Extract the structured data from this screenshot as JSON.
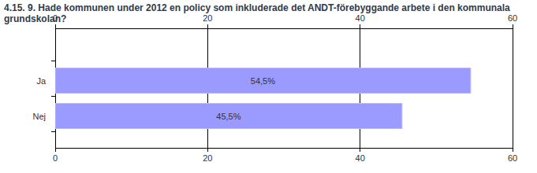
{
  "chart_data": {
    "type": "bar",
    "title": "4.15. 9. Hade kommunen under 2012 en policy som inkluderade det ANDT-förebyggande arbete i den kommunala grundskolan?",
    "categories": [
      "Ja",
      "Nej"
    ],
    "values": [
      54.5,
      45.5
    ],
    "value_labels": [
      "54,5%",
      "45,5%"
    ],
    "color": "#9b9bff",
    "orientation": "horizontal",
    "data_labels": true,
    "xlim": [
      0,
      60
    ],
    "xticks": [
      0,
      20,
      40,
      60
    ],
    "grid": true
  }
}
